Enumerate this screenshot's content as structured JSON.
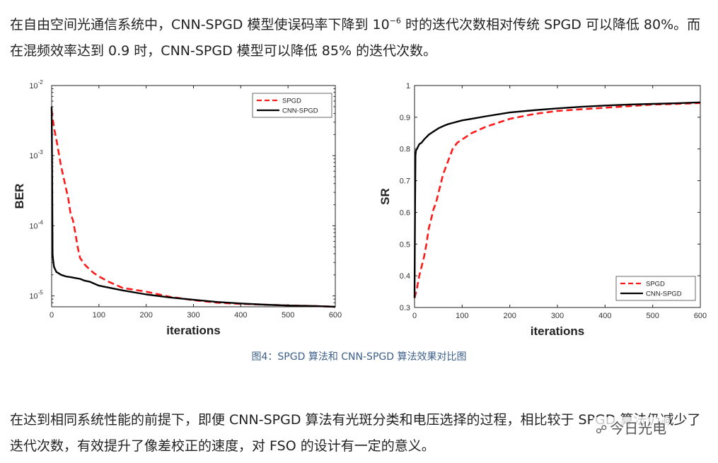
{
  "text": {
    "para1_a": "在自由空间光通信系统中，CNN-SPGD 模型使误码率下降到 10",
    "para1_sup": "−6",
    "para1_b": " 时的迭代次数相对传统 SPGD 可以降低 80%。而在混频效率达到 0.9 时，CNN-SPGD 模型可以降低 85% 的迭代次数。",
    "caption": "图4：SPGD 算法和 CNN-SPGD 算法效果对比图",
    "para2": "在达到相同系统性能的前提下，即便 CNN-SPGD 算法有光斑分类和电压选择的过程，相比较于 SPGD 算法仍减少了迭代次数，有效提升了像差校正的速度，对 FSO 的设计有一定的意义。",
    "watermark": "今日光电"
  },
  "colors": {
    "spgd": "#ff1a1a",
    "cnn": "#000000",
    "caption": "#3b5f8a"
  },
  "chart_data": [
    {
      "type": "line",
      "xlabel": "iterations",
      "ylabel": "BER",
      "xlim": [
        0,
        600
      ],
      "ylim": [
        7e-06,
        0.01
      ],
      "yscale": "log",
      "xticks": [
        0,
        100,
        200,
        300,
        400,
        500,
        600
      ],
      "yticks": [
        1e-05,
        0.0001,
        0.001,
        0.01
      ],
      "ytick_labels": [
        [
          "10",
          "-5"
        ],
        [
          "10",
          "-4"
        ],
        [
          "10",
          "-3"
        ],
        [
          "10",
          "-2"
        ]
      ],
      "legend_position": "top-right",
      "grid": false,
      "series": [
        {
          "name": "SPGD",
          "style": "dashed",
          "x": [
            0,
            2,
            5,
            10,
            15,
            20,
            25,
            30,
            35,
            40,
            45,
            50,
            55,
            60,
            70,
            80,
            90,
            100,
            120,
            150,
            200,
            250,
            300,
            350,
            400,
            450,
            500,
            550,
            600
          ],
          "y": [
            0.0045,
            0.0035,
            0.0025,
            0.0017,
            0.0011,
            0.0007,
            0.0005,
            0.00035,
            0.00025,
            0.00015,
            0.00012,
            8e-05,
            5e-05,
            3.5e-05,
            2.8e-05,
            2.4e-05,
            2.1e-05,
            1.9e-05,
            1.6e-05,
            1.3e-05,
            1.15e-05,
            9.7e-06,
            8.7e-06,
            8e-06,
            7.7e-06,
            7.5e-06,
            7.3e-06,
            7.2e-06,
            7e-06
          ]
        },
        {
          "name": "CNN-SPGD",
          "style": "solid",
          "x": [
            0,
            1,
            2,
            3,
            5,
            10,
            20,
            30,
            40,
            50,
            60,
            70,
            80,
            100,
            150,
            200,
            250,
            300,
            350,
            400,
            450,
            500,
            550,
            600
          ],
          "y": [
            0.005,
            0.0006,
            4e-05,
            3.3e-05,
            2.6e-05,
            2.2e-05,
            2e-05,
            1.9e-05,
            1.85e-05,
            1.8e-05,
            1.75e-05,
            1.65e-05,
            1.6e-05,
            1.4e-05,
            1.2e-05,
            1.05e-05,
            9.5e-06,
            8.8e-06,
            8.2e-06,
            7.8e-06,
            7.5e-06,
            7.3e-06,
            7.2e-06,
            7e-06
          ]
        }
      ]
    },
    {
      "type": "line",
      "xlabel": "iterations",
      "ylabel": "SR",
      "xlim": [
        0,
        600
      ],
      "ylim": [
        0.3,
        1
      ],
      "xticks": [
        0,
        100,
        200,
        300,
        400,
        500,
        600
      ],
      "yticks": [
        0.3,
        0.4,
        0.5,
        0.6,
        0.7,
        0.8,
        0.9,
        1
      ],
      "ytick_labels": [
        [
          "0.3"
        ],
        [
          "0.4"
        ],
        [
          "0.5"
        ],
        [
          "0.6"
        ],
        [
          "0.7"
        ],
        [
          "0.8"
        ],
        [
          "0.9"
        ],
        [
          "1"
        ]
      ],
      "legend_position": "bottom-right",
      "grid": false,
      "series": [
        {
          "name": "SPGD",
          "style": "dashed",
          "x": [
            0,
            5,
            10,
            15,
            20,
            25,
            30,
            35,
            40,
            45,
            50,
            60,
            70,
            80,
            90,
            100,
            120,
            150,
            200,
            250,
            300,
            350,
            400,
            450,
            500,
            550,
            600
          ],
          "y": [
            0.33,
            0.36,
            0.4,
            0.43,
            0.46,
            0.5,
            0.55,
            0.58,
            0.61,
            0.63,
            0.66,
            0.72,
            0.76,
            0.8,
            0.82,
            0.83,
            0.85,
            0.87,
            0.895,
            0.91,
            0.92,
            0.925,
            0.93,
            0.935,
            0.94,
            0.942,
            0.945
          ]
        },
        {
          "name": "CNN-SPGD",
          "style": "solid",
          "x": [
            0,
            1,
            2,
            3,
            5,
            10,
            15,
            20,
            30,
            40,
            50,
            60,
            70,
            80,
            100,
            120,
            150,
            200,
            250,
            300,
            350,
            400,
            450,
            500,
            550,
            600
          ],
          "y": [
            0.33,
            0.6,
            0.78,
            0.795,
            0.8,
            0.815,
            0.82,
            0.83,
            0.845,
            0.855,
            0.865,
            0.872,
            0.878,
            0.882,
            0.89,
            0.895,
            0.903,
            0.915,
            0.922,
            0.928,
            0.933,
            0.937,
            0.94,
            0.942,
            0.944,
            0.947
          ]
        }
      ]
    }
  ]
}
